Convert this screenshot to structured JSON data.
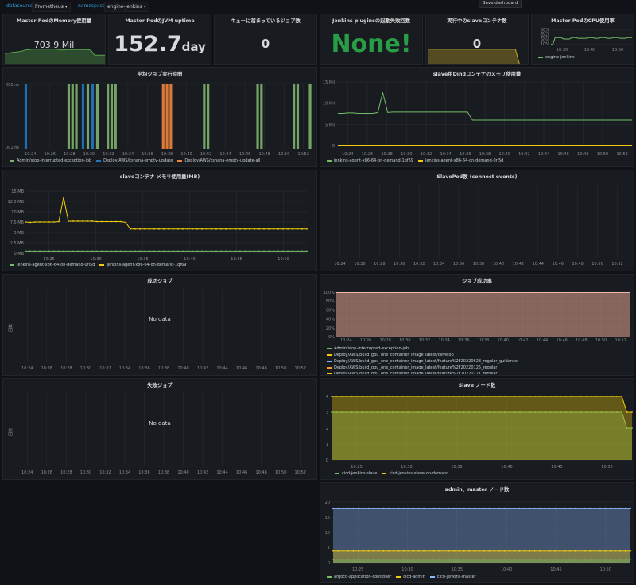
{
  "topbar": {
    "datasource_label": "datasource",
    "datasource_value": "Prometheus",
    "namespace_label": "namespace",
    "namespace_value": "engine-jenkins",
    "save_label": "Save dashboard"
  },
  "stats": {
    "memory": {
      "title": "Master PodのMemory使用量",
      "value": "703.9 Mil"
    },
    "uptime": {
      "title": "Master PodのJVM uptime",
      "value": "152.7",
      "unit": "day"
    },
    "queue": {
      "title": "キューに溜まっているジョブ数",
      "value": "0"
    },
    "plugins": {
      "title": "Jenkins pluginsの起動失敗回数",
      "value": "None!",
      "color": "#299c46"
    },
    "slaves": {
      "title": "実行中のslaveコンテナ数",
      "value": "0"
    },
    "cpu": {
      "title": "Master PodのCPU使用率",
      "legend": "engine-jenkins",
      "y_ticks": [
        "50%",
        "40%",
        "30%",
        "20%",
        "10%"
      ],
      "x_ticks": [
        "10:30",
        "10:40",
        "10:50"
      ]
    }
  },
  "panels": {
    "avg_job": {
      "title": "平均ジョブ実行時間",
      "y_top": "002ms",
      "y_bottom": "001ms",
      "legend": [
        "Admin/stop-interrupted-exception-job",
        "Deploy/AWS/kshana-empty-update",
        "Deploy/AWS/kshana-empty-update-all"
      ]
    },
    "dind_mem": {
      "title": "slave用Dindコンテナのメモリ使用量",
      "legend": [
        "jenkins-agent-x86-64-on-demand-1qf69",
        "jenkins-agent-x86-64-on-demand-0rl5d"
      ]
    },
    "slave_mem": {
      "title": "slaveコンテナ メモリ使用量(MB)",
      "legend": [
        "jenkins-agent-x86-64-on-demand-0rl5d",
        "jenkins-agent-x86-64-on-demand-1qf69"
      ]
    },
    "slavepod": {
      "title": "SlavePod数 (connect events)"
    },
    "success": {
      "title": "成功ジョブ",
      "nodata": "No data",
      "ylabel": "回数"
    },
    "success_rate": {
      "title": "ジョブ成功率",
      "legend": [
        "Admin/stop-interrupted-exception-job",
        "Deploy/AWS/build_gpu_one_container_image_latest/develop",
        "Deploy/AWS/build_gpu_one_container_image_latest/feature%2F20220628_regular_guidance",
        "Deploy/AWS/build_gpu_one_container_image_latest/feature%2F20220125_regular",
        "Deploy/AWS/build_gpu_one_container_image_latest/feature%2F20220221_regular",
        "Deploy/AWS/build_gpu_one_container_image_latest/feature%2F20220310_regular_traffic_process"
      ]
    },
    "failed": {
      "title": "失敗ジョブ",
      "nodata": "No data",
      "ylabel": "回数"
    },
    "slave_nodes": {
      "title": "Slave ノード数",
      "legend": [
        "cicd-jenkins-slave",
        "cicd-jenkins-slave-on-demand"
      ]
    },
    "admin_nodes": {
      "title": "admin、master ノード数",
      "legend": [
        "argocd-application-controller",
        "cicd-admin",
        "cicd-jenkins-master"
      ]
    }
  },
  "chart_data": [
    {
      "id": "memory_spark",
      "type": "area",
      "color": "#56a64b",
      "values": [
        0.55,
        0.55,
        0.58,
        0.6,
        0.62,
        0.65,
        0.7,
        0.72,
        0.74,
        0.74,
        0.74,
        0.74,
        0.74,
        0.74,
        0.74,
        0.74,
        0.7,
        0.7,
        0.72,
        0.72,
        0.72,
        0.72,
        0.72,
        0.72,
        0.72,
        0.68,
        0.45,
        0.45,
        0.45,
        0.45
      ]
    },
    {
      "id": "slaves_spark",
      "type": "area",
      "color": "#c9a727",
      "values": [
        0.35,
        0.35,
        0.35,
        0.35,
        0.35,
        0.35,
        0.35,
        0.35,
        0.35,
        0.35,
        0.35,
        0.35,
        0.35,
        0.35,
        0.35,
        0.35,
        0.35,
        0.35,
        0.35,
        0.35,
        0.35,
        0.35,
        0.0,
        0.0,
        0.0
      ]
    },
    {
      "id": "cpu",
      "type": "line",
      "color": "#73bf69",
      "values": [
        0.15,
        0.15,
        0.6,
        0.6,
        0.6,
        0.6,
        0.5,
        0.5,
        0.5,
        0.5,
        0.6,
        0.6,
        0.6,
        0.55,
        0.55,
        0.55,
        0.55,
        0.55,
        0.6,
        0.6,
        0.6,
        0.55,
        0.55,
        0.55,
        0.6,
        0.6,
        0.6,
        0.55,
        0.55,
        0.55,
        0.6,
        0.6,
        0.6,
        0.55,
        0.55,
        0.55,
        0.55,
        0.6,
        0.6,
        0.6
      ]
    },
    {
      "id": "avg_job",
      "type": "bar",
      "x_ticks": [
        "10:24",
        "10:26",
        "10:28",
        "10:30",
        "10:32",
        "10:34",
        "10:36",
        "10:38",
        "10:40",
        "10:42",
        "10:44",
        "10:46",
        "10:48",
        "10:50",
        "10:52"
      ],
      "bars": [
        {
          "x": 10.232,
          "color": "#1f78c1"
        },
        {
          "x": 10.277,
          "color": "#7eb26d"
        },
        {
          "x": 10.281,
          "color": "#7eb26d"
        },
        {
          "x": 10.285,
          "color": "#7eb26d"
        },
        {
          "x": 10.292,
          "color": "#1f78c1"
        },
        {
          "x": 10.297,
          "color": "#7eb26d"
        },
        {
          "x": 10.302,
          "color": "#1f78c1"
        },
        {
          "x": 10.307,
          "color": "#7eb26d"
        },
        {
          "x": 10.318,
          "color": "#7eb26d"
        },
        {
          "x": 10.322,
          "color": "#7eb26d"
        },
        {
          "x": 10.326,
          "color": "#7eb26d"
        },
        {
          "x": 10.376,
          "color": "#ef843c"
        },
        {
          "x": 10.38,
          "color": "#ef843c"
        },
        {
          "x": 10.384,
          "color": "#ef843c"
        },
        {
          "x": 10.419,
          "color": "#7eb26d"
        },
        {
          "x": 10.423,
          "color": "#7eb26d"
        },
        {
          "x": 10.475,
          "color": "#7eb26d"
        },
        {
          "x": 10.479,
          "color": "#7eb26d"
        },
        {
          "x": 10.513,
          "color": "#7eb26d"
        },
        {
          "x": 10.517,
          "color": "#7eb26d"
        },
        {
          "x": 10.53,
          "color": "#7eb26d"
        }
      ]
    },
    {
      "id": "dind_mem",
      "type": "line",
      "y_ticks": [
        "15 Mil",
        "10 Mil",
        "5 Mil",
        "0"
      ],
      "y_max": 15,
      "x_ticks": [
        "10:24",
        "10:26",
        "10:28",
        "10:30",
        "10:32",
        "10:34",
        "10:36",
        "10:38",
        "10:40",
        "10:42",
        "10:44",
        "10:46",
        "10:48",
        "10:50",
        "10:52"
      ],
      "series": [
        {
          "name": "jenkins-agent-x86-64-on-demand-1qf69",
          "color": "#73bf69",
          "values": [
            7.6,
            7.6,
            7.7,
            7.7,
            7.6,
            7.6,
            7.6,
            7.6,
            7.8,
            12.5,
            7.8,
            7.9,
            7.9,
            7.9,
            7.9,
            7.9,
            7.9,
            7.9,
            7.9,
            7.9,
            7.9,
            7.9,
            7.9,
            7.9,
            7.9,
            7.9,
            7.9,
            6.0,
            6.0,
            6.0,
            6.0,
            6.0,
            6.0,
            6.0,
            6.0,
            6.0,
            6.0,
            6.0,
            6.0,
            6.0,
            6.0,
            6.0,
            6.0,
            6.0,
            6.0,
            6.0,
            6.0,
            6.0,
            6.0,
            6.0,
            6.0,
            6.0,
            6.0,
            6.0,
            6.0,
            6.0,
            6.0,
            6.0,
            6.0,
            6.0
          ]
        },
        {
          "name": "jenkins-agent-x86-64-on-demand-0rl5d",
          "color": "#f2cc0c",
          "values": [
            0.1,
            0.1,
            0.1,
            0.1,
            0.1,
            0.1,
            0.1,
            0.1,
            0.1,
            0.1,
            0.1,
            0.1,
            0.1,
            0.1,
            0.1,
            0.1,
            0.1,
            0.1,
            0.1,
            0.1,
            0.1,
            0.1,
            0.1,
            0.1,
            0.1,
            0.1,
            0.1,
            0.1,
            0.1,
            0.1,
            0.1,
            0.1,
            0.1,
            0.1,
            0.1,
            0.1,
            0.1,
            0.1,
            0.1,
            0.1,
            0.1,
            0.1,
            0.1,
            0.1,
            0.1,
            0.1,
            0.1,
            0.1,
            0.1,
            0.1,
            0.1,
            0.1,
            0.1,
            0.1,
            0.1,
            0.1,
            0.1,
            0.1,
            0.1,
            0.1
          ]
        }
      ]
    },
    {
      "id": "slave_mem",
      "type": "line",
      "y_ticks": [
        "15 MB",
        "12.5 MB",
        "10 MB",
        "7.5 MB",
        "5 MB",
        "2.5 MB",
        "0 MB"
      ],
      "y_max": 15,
      "x_ticks": [
        "10:25",
        "10:30",
        "10:35",
        "10:40",
        "10:45",
        "10:50"
      ],
      "series": [
        {
          "name": "jenkins-agent-x86-64-on-demand-0rl5d",
          "color": "#73bf69",
          "values": [
            0.5,
            0.5,
            0.5,
            0.5,
            0.5,
            0.5,
            0.5,
            0.5,
            0.5,
            0.5,
            0.5,
            0.5,
            0.5,
            0.5,
            0.5,
            0.5,
            0.5,
            0.5,
            0.5,
            0.5,
            0.5,
            0.5,
            0.5,
            0.5,
            0.5,
            0.5,
            0.5,
            0.5,
            0.5,
            0.5,
            0.5,
            0.5,
            0.5,
            0.5,
            0.5,
            0.5,
            0.5,
            0.5,
            0.5,
            0.5,
            0.5,
            0.5,
            0.5,
            0.5,
            0.5,
            0.5,
            0.5,
            0.5,
            0.5,
            0.5,
            0.5,
            0.5,
            0.5,
            0.5,
            0.5,
            0.5,
            0.5,
            0.5,
            0.5,
            0.5
          ]
        },
        {
          "name": "jenkins-agent-x86-64-on-demand-1qf69",
          "color": "#f2cc0c",
          "values": [
            7.5,
            7.4,
            7.5,
            7.5,
            7.5,
            7.5,
            7.5,
            7.6,
            13.5,
            7.7,
            7.7,
            7.7,
            7.7,
            7.7,
            7.7,
            7.6,
            7.6,
            7.6,
            7.6,
            7.6,
            7.6,
            7.4,
            5.8,
            5.8,
            5.8,
            5.8,
            5.8,
            5.8,
            5.8,
            5.8,
            5.8,
            5.8,
            5.8,
            5.8,
            5.8,
            5.8,
            5.8,
            5.8,
            5.8,
            5.8,
            5.8,
            5.8,
            5.8,
            5.8,
            5.8,
            5.8,
            5.8,
            5.8,
            5.8,
            5.8,
            5.8,
            5.8,
            5.8,
            5.8,
            5.8,
            5.8,
            5.8,
            5.8,
            5.8,
            5.8
          ]
        }
      ]
    },
    {
      "id": "slavepod",
      "type": "line",
      "x_ticks": [
        "10:24",
        "10:26",
        "10:28",
        "10:30",
        "10:32",
        "10:34",
        "10:36",
        "10:38",
        "10:40",
        "10:42",
        "10:44",
        "10:46",
        "10:48",
        "10:50",
        "10:52"
      ],
      "series": []
    },
    {
      "id": "success",
      "type": "line",
      "x_ticks": [
        "10:24",
        "10:26",
        "10:28",
        "10:30",
        "10:32",
        "10:34",
        "10:36",
        "10:38",
        "10:40",
        "10:42",
        "10:44",
        "10:46",
        "10:48",
        "10:50",
        "10:52"
      ],
      "series": []
    },
    {
      "id": "success_rate",
      "type": "area",
      "y_ticks": [
        "100%",
        "80%",
        "60%",
        "40%",
        "20%",
        "0%"
      ],
      "x_ticks": [
        "10:24",
        "10:26",
        "10:28",
        "10:30",
        "10:32",
        "10:34",
        "10:36",
        "10:38",
        "10:40",
        "10:42",
        "10:44",
        "10:46",
        "10:48",
        "10:50",
        "10:52"
      ],
      "series": [
        {
          "name": "Admin/stop-interrupted-exception-job",
          "color": "#e0a391",
          "values": [
            100,
            100
          ]
        }
      ]
    },
    {
      "id": "failed",
      "type": "line",
      "x_ticks": [
        "10:24",
        "10:26",
        "10:28",
        "10:30",
        "10:32",
        "10:34",
        "10:36",
        "10:38",
        "10:40",
        "10:42",
        "10:44",
        "10:46",
        "10:48",
        "10:50",
        "10:52"
      ],
      "series": []
    },
    {
      "id": "slave_nodes",
      "type": "area",
      "y_ticks": [
        "4",
        "3",
        "2",
        "1",
        "0"
      ],
      "y_max": 4,
      "x_ticks": [
        "10:25",
        "10:30",
        "10:35",
        "10:40",
        "10:45",
        "10:50"
      ],
      "series": [
        {
          "name": "cicd-jenkins-slave",
          "color": "#73bf69",
          "values": [
            3,
            3,
            3,
            3,
            3,
            3,
            3,
            3,
            3,
            3,
            3,
            3,
            3,
            3,
            3,
            3,
            3,
            3,
            3,
            3,
            3,
            3,
            3,
            3,
            3,
            3,
            3,
            3,
            3,
            3,
            3,
            3,
            3,
            3,
            3,
            3,
            3,
            3,
            3,
            3,
            3,
            3,
            3,
            3,
            3,
            3,
            3,
            3,
            3,
            3,
            3,
            3,
            3,
            3,
            3,
            3,
            3,
            3,
            2,
            2
          ]
        },
        {
          "name": "cicd-jenkins-slave-on-demand",
          "color": "#f2cc0c",
          "values": [
            4,
            4,
            4,
            4,
            4,
            4,
            4,
            4,
            4,
            4,
            4,
            4,
            4,
            4,
            4,
            4,
            4,
            4,
            4,
            4,
            4,
            4,
            4,
            4,
            4,
            4,
            4,
            4,
            4,
            4,
            4,
            4,
            4,
            4,
            4,
            4,
            4,
            4,
            4,
            4,
            4,
            4,
            4,
            4,
            4,
            4,
            4,
            4,
            4,
            4,
            4,
            4,
            4,
            4,
            4,
            4,
            4,
            4,
            3,
            3
          ]
        }
      ]
    },
    {
      "id": "admin_nodes",
      "type": "area",
      "y_ticks": [
        "20",
        "15",
        "10",
        "5",
        "0"
      ],
      "y_max": 20,
      "x_ticks": [
        "10:25",
        "10:30",
        "10:35",
        "10:40",
        "10:45",
        "10:50"
      ],
      "series": [
        {
          "name": "argocd-application-controller",
          "color": "#73bf69",
          "values": [
            1,
            1
          ]
        },
        {
          "name": "cicd-admin",
          "color": "#f2cc0c",
          "values": [
            4,
            4
          ]
        },
        {
          "name": "cicd-jenkins-master",
          "color": "#8ab8ff",
          "values": [
            18,
            18
          ]
        }
      ]
    }
  ]
}
